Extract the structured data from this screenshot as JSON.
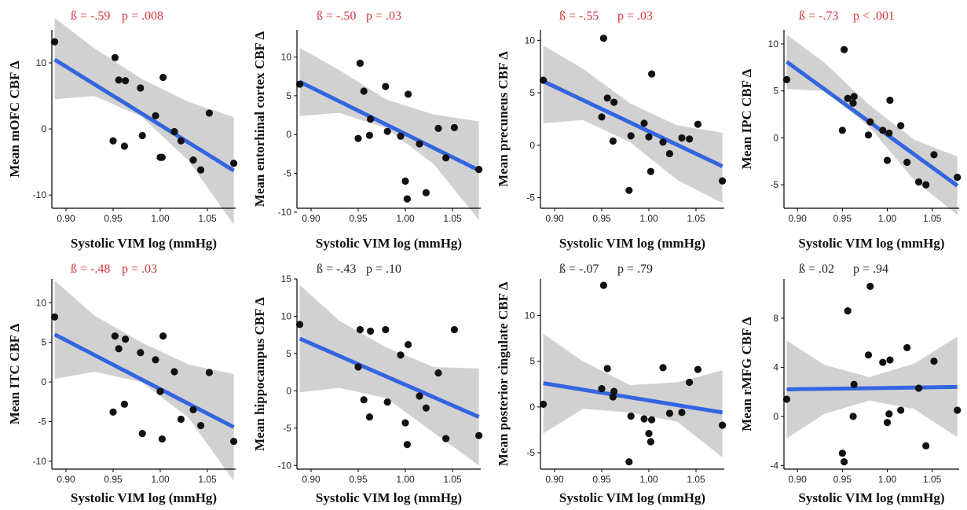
{
  "colors": {
    "significant": "#d1373f",
    "nonsignificant": "#222222",
    "line": "#3465e0",
    "band": "#c9c9c9",
    "point": "#111111"
  },
  "chart_data": [
    {
      "type": "scatter",
      "beta": "ß = -.59",
      "p": "p = .008",
      "significant": true,
      "xlabel": "Systolic VIM log (mmHg)",
      "ylabel": "Mean mOFC CBF Δ",
      "xlim": [
        0.885,
        1.08
      ],
      "xticks": [
        "0.90",
        "0.95",
        "1.00",
        "1.05"
      ],
      "ylim": [
        -12,
        15
      ],
      "yticks": [
        "-10",
        "0",
        "10"
      ],
      "fit": {
        "x": [
          0.888,
          1.078
        ],
        "y": [
          10.5,
          -6.3
        ]
      },
      "band": {
        "x": [
          0.888,
          0.93,
          0.98,
          1.03,
          1.078
        ],
        "upper": [
          16.8,
          12.2,
          7.6,
          4.1,
          1.8
        ],
        "lower": [
          4.5,
          5.0,
          1.9,
          -4.8,
          -14.5
        ]
      },
      "points": [
        {
          "x": 0.888,
          "y": 13.2
        },
        {
          "x": 0.95,
          "y": -1.8
        },
        {
          "x": 0.952,
          "y": 10.8
        },
        {
          "x": 0.956,
          "y": 7.4
        },
        {
          "x": 0.963,
          "y": 7.3
        },
        {
          "x": 0.962,
          "y": -2.6
        },
        {
          "x": 0.979,
          "y": 6.2
        },
        {
          "x": 0.981,
          "y": -1.0
        },
        {
          "x": 0.995,
          "y": 2.0
        },
        {
          "x": 1.0,
          "y": -4.3
        },
        {
          "x": 1.002,
          "y": -4.3
        },
        {
          "x": 1.003,
          "y": 7.8
        },
        {
          "x": 1.015,
          "y": -0.4
        },
        {
          "x": 1.022,
          "y": -1.8
        },
        {
          "x": 1.035,
          "y": -4.7
        },
        {
          "x": 1.043,
          "y": -6.2
        },
        {
          "x": 1.052,
          "y": 2.4
        },
        {
          "x": 1.078,
          "y": -5.2
        }
      ]
    },
    {
      "type": "scatter",
      "beta": "ß = -.50",
      "p": "p = .03",
      "significant": true,
      "xlabel": "Systolic VIM log (mmHg)",
      "ylabel": "Mean entorhinal cortex CBF Δ",
      "xlim": [
        0.885,
        1.08
      ],
      "xticks": [
        "0.90",
        "0.95",
        "1.00",
        "1.05"
      ],
      "ylim": [
        -9.5,
        13.5
      ],
      "yticks": [
        "-10",
        "-5",
        "0",
        "5",
        "10"
      ],
      "fit": {
        "x": [
          0.888,
          1.078
        ],
        "y": [
          6.8,
          -4.6
        ]
      },
      "band": {
        "x": [
          0.888,
          0.93,
          0.98,
          1.03,
          1.078
        ],
        "upper": [
          11.2,
          8.3,
          4.5,
          2.6,
          1.7
        ],
        "lower": [
          2.4,
          2.8,
          0.8,
          -3.8,
          -11.0
        ]
      },
      "points": [
        {
          "x": 0.888,
          "y": 6.5
        },
        {
          "x": 0.95,
          "y": -0.5
        },
        {
          "x": 0.952,
          "y": 9.2
        },
        {
          "x": 0.956,
          "y": 5.6
        },
        {
          "x": 0.963,
          "y": 2.0
        },
        {
          "x": 0.962,
          "y": -0.1
        },
        {
          "x": 0.979,
          "y": 6.2
        },
        {
          "x": 0.981,
          "y": 0.4
        },
        {
          "x": 0.995,
          "y": -0.2
        },
        {
          "x": 1.0,
          "y": -6.0
        },
        {
          "x": 1.002,
          "y": -8.3
        },
        {
          "x": 1.003,
          "y": 5.2
        },
        {
          "x": 1.015,
          "y": -1.2
        },
        {
          "x": 1.022,
          "y": -7.5
        },
        {
          "x": 1.035,
          "y": 0.8
        },
        {
          "x": 1.043,
          "y": -3.0
        },
        {
          "x": 1.052,
          "y": 0.9
        },
        {
          "x": 1.078,
          "y": -4.5
        }
      ]
    },
    {
      "type": "scatter",
      "beta": "ß = -.55",
      "p": "p = .03",
      "significant": true,
      "xlabel": "Systolic VIM log (mmHg)",
      "ylabel": "Mean precuneus CBF Δ",
      "xlim": [
        0.885,
        1.08
      ],
      "xticks": [
        "0.90",
        "0.95",
        "1.00",
        "1.05"
      ],
      "ylim": [
        -6,
        11
      ],
      "yticks": [
        "-5",
        "0",
        "5",
        "10"
      ],
      "fit": {
        "x": [
          0.888,
          1.078
        ],
        "y": [
          6.1,
          -2.0
        ]
      },
      "band": {
        "x": [
          0.888,
          0.93,
          0.98,
          1.03,
          1.078
        ],
        "upper": [
          9.5,
          7.3,
          4.0,
          1.9,
          1.2
        ],
        "lower": [
          2.1,
          2.4,
          0.3,
          -3.3,
          -5.5
        ]
      },
      "points": [
        {
          "x": 0.888,
          "y": 6.2
        },
        {
          "x": 0.95,
          "y": 2.7
        },
        {
          "x": 0.952,
          "y": 10.2
        },
        {
          "x": 0.956,
          "y": 4.5
        },
        {
          "x": 0.963,
          "y": 4.1
        },
        {
          "x": 0.962,
          "y": 0.4
        },
        {
          "x": 0.979,
          "y": -4.3
        },
        {
          "x": 0.981,
          "y": 0.9
        },
        {
          "x": 0.995,
          "y": 2.1
        },
        {
          "x": 1.0,
          "y": 0.8
        },
        {
          "x": 1.002,
          "y": -2.5
        },
        {
          "x": 1.003,
          "y": 6.8
        },
        {
          "x": 1.015,
          "y": 0.3
        },
        {
          "x": 1.022,
          "y": -0.8
        },
        {
          "x": 1.035,
          "y": 0.7
        },
        {
          "x": 1.043,
          "y": 0.6
        },
        {
          "x": 1.052,
          "y": 2.0
        },
        {
          "x": 1.078,
          "y": -3.4
        }
      ]
    },
    {
      "type": "scatter",
      "beta": "ß = -.73",
      "p": "p < .001",
      "significant": true,
      "xlabel": "Systolic VIM log (mmHg)",
      "ylabel": "Mean IPC CBF Δ",
      "xlim": [
        0.885,
        1.08
      ],
      "xticks": [
        "0.90",
        "0.95",
        "1.00",
        "1.05"
      ],
      "ylim": [
        -7.5,
        11.5
      ],
      "yticks": [
        "-5",
        "0",
        "5",
        "10"
      ],
      "fit": {
        "x": [
          0.888,
          1.078
        ],
        "y": [
          8.1,
          -5.1
        ]
      },
      "band": {
        "x": [
          0.888,
          0.93,
          0.98,
          1.03,
          1.078
        ],
        "upper": [
          11.0,
          8.0,
          3.5,
          -0.2,
          -2.0
        ],
        "lower": [
          5.2,
          5.0,
          1.2,
          -4.5,
          -8.2
        ]
      },
      "points": [
        {
          "x": 0.888,
          "y": 6.2
        },
        {
          "x": 0.95,
          "y": 0.8
        },
        {
          "x": 0.952,
          "y": 9.4
        },
        {
          "x": 0.956,
          "y": 4.2
        },
        {
          "x": 0.963,
          "y": 4.4
        },
        {
          "x": 0.962,
          "y": 3.7
        },
        {
          "x": 0.979,
          "y": 0.3
        },
        {
          "x": 0.981,
          "y": 1.7
        },
        {
          "x": 0.995,
          "y": 0.8
        },
        {
          "x": 1.0,
          "y": -2.4
        },
        {
          "x": 1.002,
          "y": 0.5
        },
        {
          "x": 1.003,
          "y": 4.0
        },
        {
          "x": 1.015,
          "y": 1.3
        },
        {
          "x": 1.022,
          "y": -2.6
        },
        {
          "x": 1.035,
          "y": -4.7
        },
        {
          "x": 1.043,
          "y": -5.0
        },
        {
          "x": 1.052,
          "y": -1.8
        },
        {
          "x": 1.078,
          "y": -4.2
        }
      ]
    },
    {
      "type": "scatter",
      "beta": "ß = -.48",
      "p": "p = .03",
      "significant": true,
      "xlabel": "Systolic VIM log (mmHg)",
      "ylabel": "Mean ITC CBF Δ",
      "xlim": [
        0.885,
        1.08
      ],
      "xticks": [
        "0.90",
        "0.95",
        "1.00",
        "1.05"
      ],
      "ylim": [
        -11,
        13
      ],
      "yticks": [
        "-10",
        "-5",
        "0",
        "5",
        "10"
      ],
      "fit": {
        "x": [
          0.888,
          1.078
        ],
        "y": [
          6.0,
          -5.7
        ]
      },
      "band": {
        "x": [
          0.888,
          0.93,
          0.98,
          1.03,
          1.078
        ],
        "upper": [
          12.8,
          8.4,
          5.0,
          2.2,
          1.0
        ],
        "lower": [
          0.4,
          1.3,
          0.0,
          -4.5,
          -12.5
        ]
      },
      "points": [
        {
          "x": 0.888,
          "y": 8.2
        },
        {
          "x": 0.95,
          "y": -3.8
        },
        {
          "x": 0.952,
          "y": 5.8
        },
        {
          "x": 0.956,
          "y": 4.2
        },
        {
          "x": 0.963,
          "y": 5.4
        },
        {
          "x": 0.962,
          "y": -2.8
        },
        {
          "x": 0.979,
          "y": 3.7
        },
        {
          "x": 0.981,
          "y": -6.5
        },
        {
          "x": 0.995,
          "y": 2.8
        },
        {
          "x": 1.0,
          "y": -1.2
        },
        {
          "x": 1.002,
          "y": -7.2
        },
        {
          "x": 1.003,
          "y": 5.8
        },
        {
          "x": 1.015,
          "y": 1.3
        },
        {
          "x": 1.022,
          "y": -4.7
        },
        {
          "x": 1.035,
          "y": -3.5
        },
        {
          "x": 1.043,
          "y": -5.5
        },
        {
          "x": 1.052,
          "y": 1.2
        },
        {
          "x": 1.078,
          "y": -7.5
        }
      ]
    },
    {
      "type": "scatter",
      "beta": "ß = -.43",
      "p": "p = .10",
      "significant": false,
      "xlabel": "Systolic VIM log (mmHg)",
      "ylabel": "Mean hippocampus CBF Δ",
      "xlim": [
        0.885,
        1.08
      ],
      "xticks": [
        "0.90",
        "0.95",
        "1.00",
        "1.05"
      ],
      "ylim": [
        -10.5,
        15
      ],
      "yticks": [
        "-10",
        "-5",
        "0",
        "5",
        "10",
        "15"
      ],
      "fit": {
        "x": [
          0.888,
          1.078
        ],
        "y": [
          7.0,
          -3.5
        ]
      },
      "band": {
        "x": [
          0.888,
          0.93,
          0.98,
          1.03,
          1.078
        ],
        "upper": [
          14.2,
          9.4,
          5.8,
          3.2,
          3.0
        ],
        "lower": [
          -0.2,
          0.4,
          -1.0,
          -5.6,
          -10.0
        ]
      },
      "points": [
        {
          "x": 0.888,
          "y": 8.9
        },
        {
          "x": 0.95,
          "y": 3.2
        },
        {
          "x": 0.952,
          "y": 8.2
        },
        {
          "x": 0.956,
          "y": -1.2
        },
        {
          "x": 0.963,
          "y": 8.0
        },
        {
          "x": 0.962,
          "y": -3.5
        },
        {
          "x": 0.979,
          "y": 8.2
        },
        {
          "x": 0.981,
          "y": -1.5
        },
        {
          "x": 0.995,
          "y": 4.8
        },
        {
          "x": 1.0,
          "y": -4.3
        },
        {
          "x": 1.002,
          "y": -7.2
        },
        {
          "x": 1.003,
          "y": 6.2
        },
        {
          "x": 1.015,
          "y": -0.7
        },
        {
          "x": 1.022,
          "y": -2.3
        },
        {
          "x": 1.035,
          "y": 2.4
        },
        {
          "x": 1.043,
          "y": -6.4
        },
        {
          "x": 1.052,
          "y": 8.2
        },
        {
          "x": 1.078,
          "y": -6.0
        }
      ]
    },
    {
      "type": "scatter",
      "beta": "ß = -.07",
      "p": "p = .79",
      "significant": false,
      "xlabel": "Systolic VIM log (mmHg)",
      "ylabel": "Mean posterior cingulate CBF Δ",
      "xlim": [
        0.885,
        1.08
      ],
      "xticks": [
        "0.90",
        "0.95",
        "1.00",
        "1.05"
      ],
      "ylim": [
        -6.8,
        14
      ],
      "yticks": [
        "-5",
        "0",
        "5",
        "10"
      ],
      "fit": {
        "x": [
          0.888,
          1.078
        ],
        "y": [
          2.6,
          -0.6
        ]
      },
      "band": {
        "x": [
          0.888,
          0.93,
          0.98,
          1.03,
          1.078
        ],
        "upper": [
          8.0,
          5.0,
          2.4,
          2.7,
          4.0
        ],
        "lower": [
          -2.9,
          -0.2,
          -0.6,
          -1.6,
          -5.5
        ]
      },
      "points": [
        {
          "x": 0.888,
          "y": 0.3
        },
        {
          "x": 0.95,
          "y": 2.0
        },
        {
          "x": 0.952,
          "y": 13.3
        },
        {
          "x": 0.956,
          "y": 4.2
        },
        {
          "x": 0.963,
          "y": 1.7
        },
        {
          "x": 0.962,
          "y": 1.1
        },
        {
          "x": 0.979,
          "y": -6.0
        },
        {
          "x": 0.981,
          "y": -1.0
        },
        {
          "x": 0.995,
          "y": -1.3
        },
        {
          "x": 1.0,
          "y": -2.9
        },
        {
          "x": 1.002,
          "y": -3.8
        },
        {
          "x": 1.003,
          "y": -1.4
        },
        {
          "x": 1.015,
          "y": 4.3
        },
        {
          "x": 1.022,
          "y": -0.7
        },
        {
          "x": 1.035,
          "y": -0.6
        },
        {
          "x": 1.043,
          "y": 2.7
        },
        {
          "x": 1.052,
          "y": 4.1
        },
        {
          "x": 1.078,
          "y": -2.0
        }
      ]
    },
    {
      "type": "scatter",
      "beta": "ß = .02",
      "p": "p = .94",
      "significant": false,
      "xlabel": "Systolic VIM log (mmHg)",
      "ylabel": "Mean rMFG CBF Δ",
      "xlim": [
        0.885,
        1.08
      ],
      "xticks": [
        "0.90",
        "0.95",
        "1.00",
        "1.05"
      ],
      "ylim": [
        -4.3,
        11.2
      ],
      "yticks": [
        "-4",
        "0",
        "4",
        "8"
      ],
      "fit": {
        "x": [
          0.888,
          1.078
        ],
        "y": [
          2.2,
          2.4
        ]
      },
      "band": {
        "x": [
          0.888,
          0.93,
          0.98,
          1.03,
          1.078
        ],
        "upper": [
          6.2,
          4.2,
          3.2,
          4.3,
          6.5
        ],
        "lower": [
          -1.8,
          0.2,
          1.3,
          0.6,
          -1.7
        ]
      },
      "points": [
        {
          "x": 0.888,
          "y": 1.4
        },
        {
          "x": 0.95,
          "y": -3.0
        },
        {
          "x": 0.952,
          "y": -3.7
        },
        {
          "x": 0.956,
          "y": 8.6
        },
        {
          "x": 0.963,
          "y": 2.6
        },
        {
          "x": 0.962,
          "y": 0.0
        },
        {
          "x": 0.979,
          "y": 5.0
        },
        {
          "x": 0.981,
          "y": 10.6
        },
        {
          "x": 0.995,
          "y": 4.4
        },
        {
          "x": 1.0,
          "y": -0.5
        },
        {
          "x": 1.002,
          "y": 0.2
        },
        {
          "x": 1.003,
          "y": 4.6
        },
        {
          "x": 1.015,
          "y": 0.5
        },
        {
          "x": 1.022,
          "y": 5.6
        },
        {
          "x": 1.035,
          "y": 2.3
        },
        {
          "x": 1.043,
          "y": -2.4
        },
        {
          "x": 1.052,
          "y": 4.5
        },
        {
          "x": 1.078,
          "y": 0.5
        }
      ]
    }
  ]
}
